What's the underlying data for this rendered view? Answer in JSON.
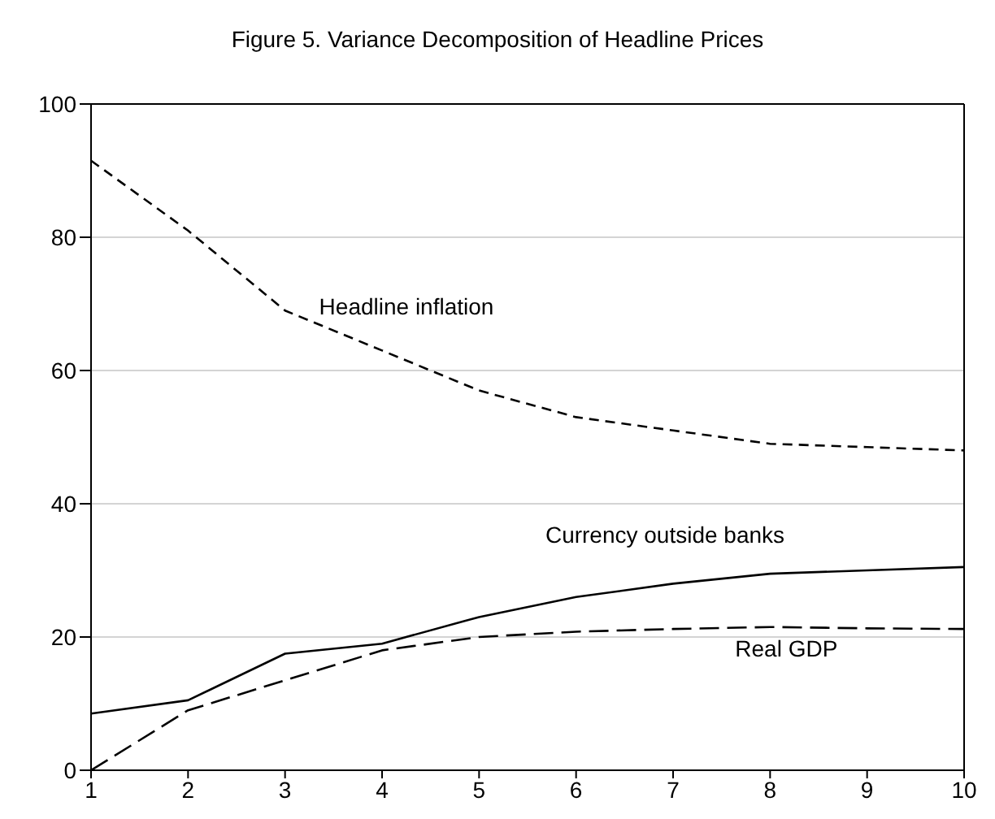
{
  "chart_data": {
    "type": "line",
    "title": "Figure 5. Variance Decomposition of Headline Prices",
    "x": [
      1,
      2,
      3,
      4,
      5,
      6,
      7,
      8,
      9,
      10
    ],
    "series": [
      {
        "name": "Headline inflation",
        "color": "#000000",
        "line_style": "dashed",
        "values": [
          91.5,
          81,
          69,
          63,
          57,
          53,
          51,
          49,
          48.5,
          48
        ]
      },
      {
        "name": "Currency outside banks",
        "color": "#000000",
        "line_style": "solid",
        "values": [
          8.5,
          10.5,
          17.5,
          19,
          23,
          26,
          28,
          29.5,
          30,
          30.5
        ]
      },
      {
        "name": "Real GDP",
        "color": "#000000",
        "line_style": "dashed",
        "values": [
          0,
          9,
          13.5,
          18,
          20,
          20.8,
          21.2,
          21.5,
          21.3,
          21.2
        ]
      }
    ],
    "xlim": [
      1,
      10
    ],
    "xticks": [
      1,
      2,
      3,
      4,
      5,
      6,
      7,
      8,
      9,
      10
    ],
    "ylim": [
      0,
      100
    ],
    "yticks": [
      0,
      20,
      40,
      60,
      80,
      100
    ],
    "grid": "y",
    "marker": "none"
  }
}
